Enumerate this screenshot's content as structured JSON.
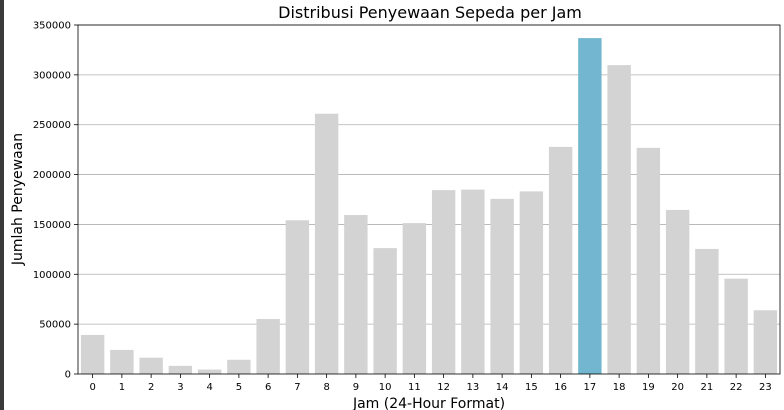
{
  "chart_data": {
    "type": "bar",
    "title": "Distribusi Penyewaan Sepeda per Jam",
    "xlabel": "Jam (24-Hour Format)",
    "ylabel": "Jumlah Penyewaan",
    "categories": [
      "0",
      "1",
      "2",
      "3",
      "4",
      "5",
      "6",
      "7",
      "8",
      "9",
      "10",
      "11",
      "12",
      "13",
      "14",
      "15",
      "16",
      "17",
      "18",
      "19",
      "20",
      "21",
      "22",
      "23"
    ],
    "values": [
      39130,
      24164,
      16352,
      8174,
      4428,
      14261,
      55132,
      154171,
      261001,
      159438,
      126257,
      151320,
      184414,
      184919,
      175652,
      183149,
      227748,
      336860,
      309772,
      226789,
      164550,
      125445,
      95612,
      63941
    ],
    "highlight_index": 17,
    "ylim": [
      0,
      350000
    ],
    "yticks": [
      0,
      50000,
      100000,
      150000,
      200000,
      250000,
      300000,
      350000
    ],
    "ytick_labels": [
      "0",
      "50000",
      "100000",
      "150000",
      "200000",
      "250000",
      "300000",
      "350000"
    ],
    "grid": "horizontal",
    "colors": {
      "default_bar": "#d3d3d3",
      "highlight_bar": "#72b6cf",
      "grid": "#b0b0b0",
      "axis": "#000000"
    }
  }
}
